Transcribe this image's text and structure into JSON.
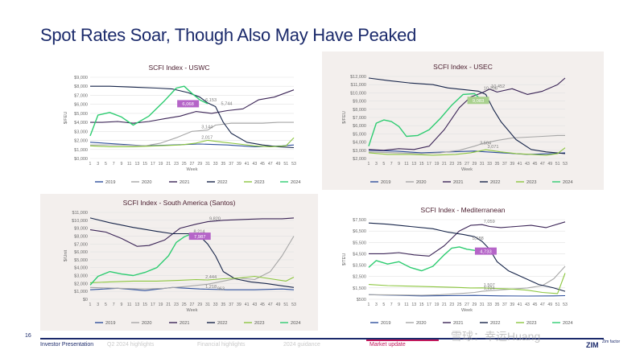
{
  "slide": {
    "title": "Spot Rates Soar, Though Also May Have Peaked",
    "page_number": "16"
  },
  "footer": {
    "tabs": [
      "Investor Presentation",
      "Q2 2024 highlights",
      "Financial highlights",
      "2024 guidance",
      "Market update"
    ],
    "active_tab": "Market update",
    "logo_text": "ZIM",
    "logo_sub": "Zim factor",
    "watermark": "雪球：幸运Huang"
  },
  "colors": {
    "title": "#1b2a6b",
    "panel_bg": "#f3efed",
    "annotation_purple": "#b565c8",
    "annotation_green": "#a8d08d",
    "series": {
      "2019": "#2e4f9c",
      "2020": "#a6a6a6",
      "2021": "#3b2456",
      "2022": "#17254a",
      "2023": "#8cc63f",
      "2024": "#2ecc71"
    }
  },
  "chart_data": [
    {
      "type": "line",
      "title": "SCFI Index - USWC",
      "xlabel": "Week",
      "ylabel": "$/FEU",
      "x_ticks": [
        "1",
        "3",
        "5",
        "7",
        "9",
        "11",
        "13",
        "15",
        "17",
        "19",
        "21",
        "23",
        "25",
        "27",
        "29",
        "31",
        "33",
        "35",
        "37",
        "39",
        "41",
        "43",
        "45",
        "47",
        "49",
        "51",
        "53"
      ],
      "y_ticks": [
        "$0,000",
        "$1,000",
        "$2,000",
        "$3,000",
        "$4,000",
        "$5,000",
        "$6,000",
        "$7,000",
        "$8,000",
        "$9,000"
      ],
      "ylim": [
        0,
        9000
      ],
      "xlim": [
        1,
        53
      ],
      "legend_position": "bottom",
      "series": [
        {
          "name": "2019",
          "x": [
            1,
            8,
            15,
            22,
            29,
            36,
            43,
            50,
            53
          ],
          "values": [
            1800,
            1600,
            1400,
            1500,
            1600,
            1500,
            1300,
            1400,
            1500
          ]
        },
        {
          "name": "2020",
          "x": [
            1,
            8,
            15,
            19,
            23,
            27,
            31,
            33,
            37,
            41,
            45,
            49,
            53
          ],
          "values": [
            1500,
            1500,
            1400,
            1700,
            2300,
            3000,
            3144,
            3700,
            3900,
            3900,
            3900,
            4000,
            4000
          ]
        },
        {
          "name": "2021",
          "x": [
            1,
            4,
            8,
            12,
            16,
            20,
            24,
            28,
            32,
            36,
            40,
            44,
            48,
            53
          ],
          "values": [
            4000,
            4000,
            4100,
            3900,
            4100,
            4400,
            4700,
            5200,
            5000,
            5300,
            5500,
            6500,
            6800,
            7600
          ]
        },
        {
          "name": "2022",
          "x": [
            1,
            6,
            12,
            18,
            22,
            26,
            29,
            31,
            33,
            35,
            37,
            41,
            45,
            49,
            53
          ],
          "values": [
            8000,
            8000,
            7900,
            7800,
            7700,
            7300,
            6800,
            6153,
            5744,
            4000,
            2800,
            1800,
            1500,
            1300,
            1200
          ]
        },
        {
          "name": "2023",
          "x": [
            1,
            6,
            12,
            18,
            24,
            28,
            31,
            35,
            39,
            43,
            47,
            51,
            53
          ],
          "values": [
            1400,
            1300,
            1300,
            1400,
            1500,
            1700,
            2017,
            1800,
            1600,
            1400,
            1300,
            1400,
            2300
          ]
        },
        {
          "name": "2024",
          "x": [
            1,
            3,
            6,
            9,
            12,
            16,
            20,
            23,
            25,
            27,
            29,
            31
          ],
          "values": [
            2500,
            4800,
            5100,
            4600,
            3700,
            4700,
            6400,
            7800,
            8000,
            7200,
            6500,
            6068
          ]
        }
      ],
      "annotations": [
        {
          "text": "6,153",
          "x": 30,
          "y": 6153
        },
        {
          "text": "5,744",
          "x": 34,
          "y": 5744
        },
        {
          "text": "3,144",
          "x": 29,
          "y": 3144
        },
        {
          "text": "2,017",
          "x": 29,
          "y": 2017
        },
        {
          "text": "6,068",
          "x": 26,
          "y": 6068,
          "boxed": true,
          "box_color": "#b565c8"
        }
      ]
    },
    {
      "type": "line",
      "title": "SCFI Index - USEC",
      "xlabel": "Week",
      "ylabel": "$/FEU",
      "x_ticks": [
        "1",
        "3",
        "5",
        "7",
        "9",
        "11",
        "13",
        "15",
        "17",
        "19",
        "21",
        "23",
        "25",
        "27",
        "29",
        "31",
        "33",
        "35",
        "37",
        "39",
        "41",
        "43",
        "45",
        "47",
        "49",
        "51",
        "53"
      ],
      "y_ticks": [
        "$2,000",
        "$3,000",
        "$4,000",
        "$5,000",
        "$6,000",
        "$7,000",
        "$8,000",
        "$9,000",
        "$10,000",
        "$11,000",
        "$12,000"
      ],
      "ylim": [
        2000,
        12000
      ],
      "xlim": [
        1,
        53
      ],
      "legend_position": "bottom",
      "series": [
        {
          "name": "2019",
          "x": [
            1,
            8,
            15,
            22,
            29,
            36,
            43,
            50,
            53
          ],
          "values": [
            3000,
            2900,
            2700,
            2800,
            2900,
            2700,
            2500,
            2600,
            2700
          ]
        },
        {
          "name": "2020",
          "x": [
            1,
            8,
            15,
            20,
            25,
            29,
            31,
            35,
            39,
            43,
            47,
            51,
            53
          ],
          "values": [
            2800,
            2700,
            2600,
            2700,
            3000,
            3504,
            3800,
            4200,
            4500,
            4600,
            4700,
            4800,
            4800
          ]
        },
        {
          "name": "2021",
          "x": [
            1,
            5,
            9,
            13,
            17,
            21,
            25,
            28,
            31,
            33,
            35,
            39,
            43,
            47,
            51,
            53
          ],
          "values": [
            3100,
            3000,
            3200,
            3100,
            3500,
            5500,
            8200,
            9500,
            10000,
            10452,
            10100,
            10500,
            9800,
            10200,
            11000,
            11800
          ]
        },
        {
          "name": "2022",
          "x": [
            1,
            6,
            12,
            18,
            22,
            26,
            30,
            32,
            34,
            36,
            40,
            44,
            48,
            53
          ],
          "values": [
            11800,
            11500,
            11200,
            11000,
            10600,
            10400,
            10206,
            9800,
            8000,
            6500,
            4300,
            3100,
            2800,
            2600
          ]
        },
        {
          "name": "2023",
          "x": [
            1,
            6,
            12,
            18,
            24,
            28,
            32,
            36,
            40,
            44,
            48,
            51,
            53
          ],
          "values": [
            2700,
            2500,
            2500,
            2400,
            2500,
            2700,
            3071,
            2800,
            2600,
            2500,
            2400,
            2600,
            3300
          ]
        },
        {
          "name": "2024",
          "x": [
            1,
            3,
            5,
            7,
            9,
            11,
            14,
            17,
            20,
            23,
            26,
            29,
            31
          ],
          "values": [
            3500,
            6300,
            6700,
            6500,
            5900,
            4700,
            4800,
            5500,
            6900,
            8500,
            9800,
            9900,
            9083
          ]
        }
      ],
      "annotations": [
        {
          "text": "10,452",
          "x": 33,
          "y": 10452
        },
        {
          "text": "10,206",
          "x": 31,
          "y": 10206
        },
        {
          "text": "3,504",
          "x": 30,
          "y": 3504
        },
        {
          "text": "3,071",
          "x": 32,
          "y": 3071
        },
        {
          "text": "9,083",
          "x": 30,
          "y": 9083,
          "boxed": true,
          "box_color": "#a8d08d"
        }
      ]
    },
    {
      "type": "line",
      "title": "SCFI Index - South America (Santos)",
      "xlabel": "Week",
      "ylabel": "$/Unit",
      "x_ticks": [
        "1",
        "3",
        "5",
        "7",
        "9",
        "11",
        "13",
        "15",
        "17",
        "19",
        "21",
        "23",
        "25",
        "27",
        "29",
        "31",
        "33",
        "35",
        "37",
        "39",
        "41",
        "43",
        "45",
        "47",
        "49",
        "51",
        "53"
      ],
      "y_ticks": [
        "$0",
        "$1,000",
        "$2,000",
        "$3,000",
        "$4,000",
        "$5,000",
        "$6,000",
        "$7,000",
        "$8,000",
        "$9,000",
        "$10,000",
        "$11,000"
      ],
      "ylim": [
        0,
        11000
      ],
      "xlim": [
        1,
        53
      ],
      "legend_position": "bottom",
      "series": [
        {
          "name": "2019",
          "x": [
            1,
            8,
            15,
            22,
            29,
            36,
            43,
            50,
            53
          ],
          "values": [
            1200,
            1400,
            1100,
            1500,
            1300,
            1200,
            1200,
            1300,
            1200
          ]
        },
        {
          "name": "2020",
          "x": [
            1,
            8,
            15,
            20,
            25,
            29,
            31,
            35,
            39,
            43,
            47,
            50,
            53
          ],
          "values": [
            1500,
            1400,
            1300,
            1400,
            1600,
            1800,
            1900,
            2300,
            2700,
            2500,
            3500,
            5500,
            8000
          ]
        },
        {
          "name": "2021",
          "x": [
            1,
            5,
            9,
            13,
            16,
            20,
            24,
            28,
            31,
            35,
            40,
            45,
            50,
            53
          ],
          "values": [
            8800,
            8500,
            7700,
            6700,
            6800,
            7500,
            9000,
            9500,
            9820,
            10000,
            10100,
            10200,
            10200,
            10300
          ]
        },
        {
          "name": "2022",
          "x": [
            1,
            6,
            12,
            18,
            22,
            26,
            29,
            31,
            33,
            35,
            38,
            42,
            46,
            50,
            53
          ],
          "values": [
            10300,
            9700,
            9100,
            8600,
            8300,
            8300,
            8000,
            7000,
            5500,
            3500,
            2600,
            2200,
            2000,
            1700,
            1500
          ]
        },
        {
          "name": "2023",
          "x": [
            1,
            6,
            12,
            18,
            24,
            28,
            31,
            35,
            39,
            43,
            47,
            51,
            53
          ],
          "values": [
            2100,
            2200,
            2300,
            2300,
            2400,
            2500,
            2444,
            2600,
            2700,
            2900,
            2600,
            2300,
            2800
          ]
        },
        {
          "name": "2024",
          "x": [
            1,
            3,
            6,
            9,
            12,
            15,
            18,
            21,
            23,
            25,
            27,
            29
          ],
          "values": [
            1800,
            2900,
            3500,
            3200,
            3000,
            3400,
            4000,
            5500,
            7200,
            7900,
            8300,
            7987
          ]
        }
      ],
      "annotations": [
        {
          "text": "9,820",
          "x": 31,
          "y": 9820
        },
        {
          "text": "8,214",
          "x": 27,
          "y": 8214
        },
        {
          "text": "2,444",
          "x": 30,
          "y": 2444
        },
        {
          "text": "1,218",
          "x": 30,
          "y": 1218
        },
        {
          "text": "963",
          "x": 33,
          "y": 963
        },
        {
          "text": "7,987",
          "x": 29,
          "y": 7987,
          "boxed": true,
          "box_color": "#b565c8"
        }
      ]
    },
    {
      "type": "line",
      "title": "SCFI Index - Mediterranean",
      "xlabel": "Week",
      "ylabel": "$/TEU",
      "x_ticks": [
        "1",
        "3",
        "5",
        "7",
        "9",
        "11",
        "13",
        "15",
        "17",
        "19",
        "21",
        "23",
        "25",
        "27",
        "29",
        "31",
        "33",
        "35",
        "37",
        "39",
        "41",
        "43",
        "45",
        "47",
        "49",
        "51",
        "53"
      ],
      "y_ticks": [
        "$500",
        "$1,500",
        "$2,500",
        "$3,500",
        "$4,500",
        "$5,500",
        "$6,500",
        "$7,500"
      ],
      "ylim": [
        500,
        7500
      ],
      "xlim": [
        1,
        53
      ],
      "legend_position": "bottom",
      "series": [
        {
          "name": "2019",
          "x": [
            1,
            8,
            15,
            22,
            29,
            36,
            43,
            50,
            53
          ],
          "values": [
            900,
            850,
            800,
            820,
            840,
            800,
            780,
            800,
            820
          ]
        },
        {
          "name": "2020",
          "x": [
            1,
            8,
            15,
            20,
            25,
            29,
            31,
            35,
            39,
            43,
            47,
            50,
            53
          ],
          "values": [
            900,
            880,
            850,
            900,
            1000,
            1100,
            1200,
            1300,
            1400,
            1500,
            1700,
            2300,
            3400
          ]
        },
        {
          "name": "2021",
          "x": [
            1,
            5,
            9,
            13,
            17,
            21,
            25,
            28,
            31,
            33,
            36,
            40,
            44,
            48,
            53
          ],
          "values": [
            4500,
            4500,
            4600,
            4400,
            4300,
            5200,
            6500,
            7000,
            7059,
            6900,
            6800,
            6900,
            7000,
            6800,
            7300
          ]
        },
        {
          "name": "2022",
          "x": [
            1,
            6,
            12,
            18,
            22,
            26,
            29,
            31,
            33,
            35,
            38,
            42,
            46,
            50,
            53
          ],
          "values": [
            7200,
            7100,
            6900,
            6700,
            6400,
            6200,
            6000,
            5588,
            4900,
            3800,
            3000,
            2400,
            1800,
            1500,
            1200
          ]
        },
        {
          "name": "2023",
          "x": [
            1,
            6,
            12,
            18,
            24,
            28,
            31,
            35,
            39,
            43,
            47,
            51,
            53
          ],
          "values": [
            1800,
            1700,
            1650,
            1600,
            1550,
            1500,
            1507,
            1450,
            1400,
            1300,
            1100,
            1000,
            2800
          ]
        },
        {
          "name": "2024",
          "x": [
            1,
            3,
            6,
            9,
            12,
            15,
            18,
            21,
            23,
            25,
            27,
            29,
            31
          ],
          "values": [
            3300,
            3900,
            3600,
            3800,
            3300,
            3000,
            3400,
            4400,
            5000,
            5100,
            4900,
            4800,
            4733
          ]
        }
      ],
      "annotations": [
        {
          "text": "7,059",
          "x": 31,
          "y": 7059
        },
        {
          "text": "5,588",
          "x": 28,
          "y": 5588
        },
        {
          "text": "1,507",
          "x": 31,
          "y": 1507
        },
        {
          "text": "1,224",
          "x": 31,
          "y": 1224
        },
        {
          "text": "4,733",
          "x": 32,
          "y": 4733,
          "boxed": true,
          "box_color": "#b565c8"
        }
      ]
    }
  ]
}
